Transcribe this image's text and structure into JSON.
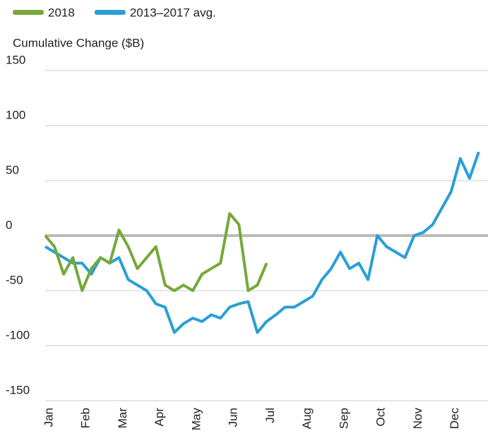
{
  "chart_data": {
    "type": "line",
    "legend": "top-left",
    "y_label": "Cumulative Change ($B)",
    "categories": [
      "Jan",
      null,
      null,
      null,
      "Feb",
      null,
      null,
      null,
      "Mar",
      null,
      null,
      null,
      "Apr",
      null,
      null,
      null,
      "May",
      null,
      null,
      null,
      "Jun",
      null,
      null,
      null,
      "Jul",
      null,
      null,
      null,
      "Aug",
      null,
      null,
      null,
      "Sep",
      null,
      null,
      null,
      "Oct",
      null,
      null,
      null,
      "Nov",
      null,
      null,
      null,
      "Dec",
      null,
      null,
      null
    ],
    "series": [
      {
        "name": "2018",
        "color": "#76a83a",
        "values": [
          0,
          -10,
          -35,
          -20,
          -50,
          -30,
          -20,
          -25,
          5,
          -10,
          -30,
          -20,
          -10,
          -45,
          -50,
          -45,
          -50,
          -35,
          -30,
          -25,
          20,
          10,
          -50,
          -45,
          -25,
          null,
          null,
          null,
          null,
          null,
          null,
          null,
          null,
          null,
          null,
          null,
          null,
          null,
          null,
          null,
          null,
          null,
          null,
          null,
          null,
          null,
          null,
          null
        ]
      },
      {
        "name": "2013–2017 avg.",
        "color": "#2a9fd6",
        "values": [
          -10,
          -15,
          -20,
          -25,
          -25,
          -35,
          -20,
          -25,
          -20,
          -40,
          -45,
          -50,
          -62,
          -65,
          -88,
          -80,
          -75,
          -78,
          -72,
          -75,
          -65,
          -62,
          -60,
          -88,
          -78,
          -72,
          -65,
          -65,
          -60,
          -55,
          -40,
          -30,
          -15,
          -30,
          -25,
          -40,
          0,
          -10,
          -15,
          -20,
          0,
          3,
          10,
          25,
          40,
          70,
          52,
          76
        ]
      }
    ],
    "ylim": [
      -150,
      150
    ],
    "yticks": [
      -150,
      -100,
      -50,
      0,
      50,
      100,
      150
    ],
    "grid": true
  }
}
